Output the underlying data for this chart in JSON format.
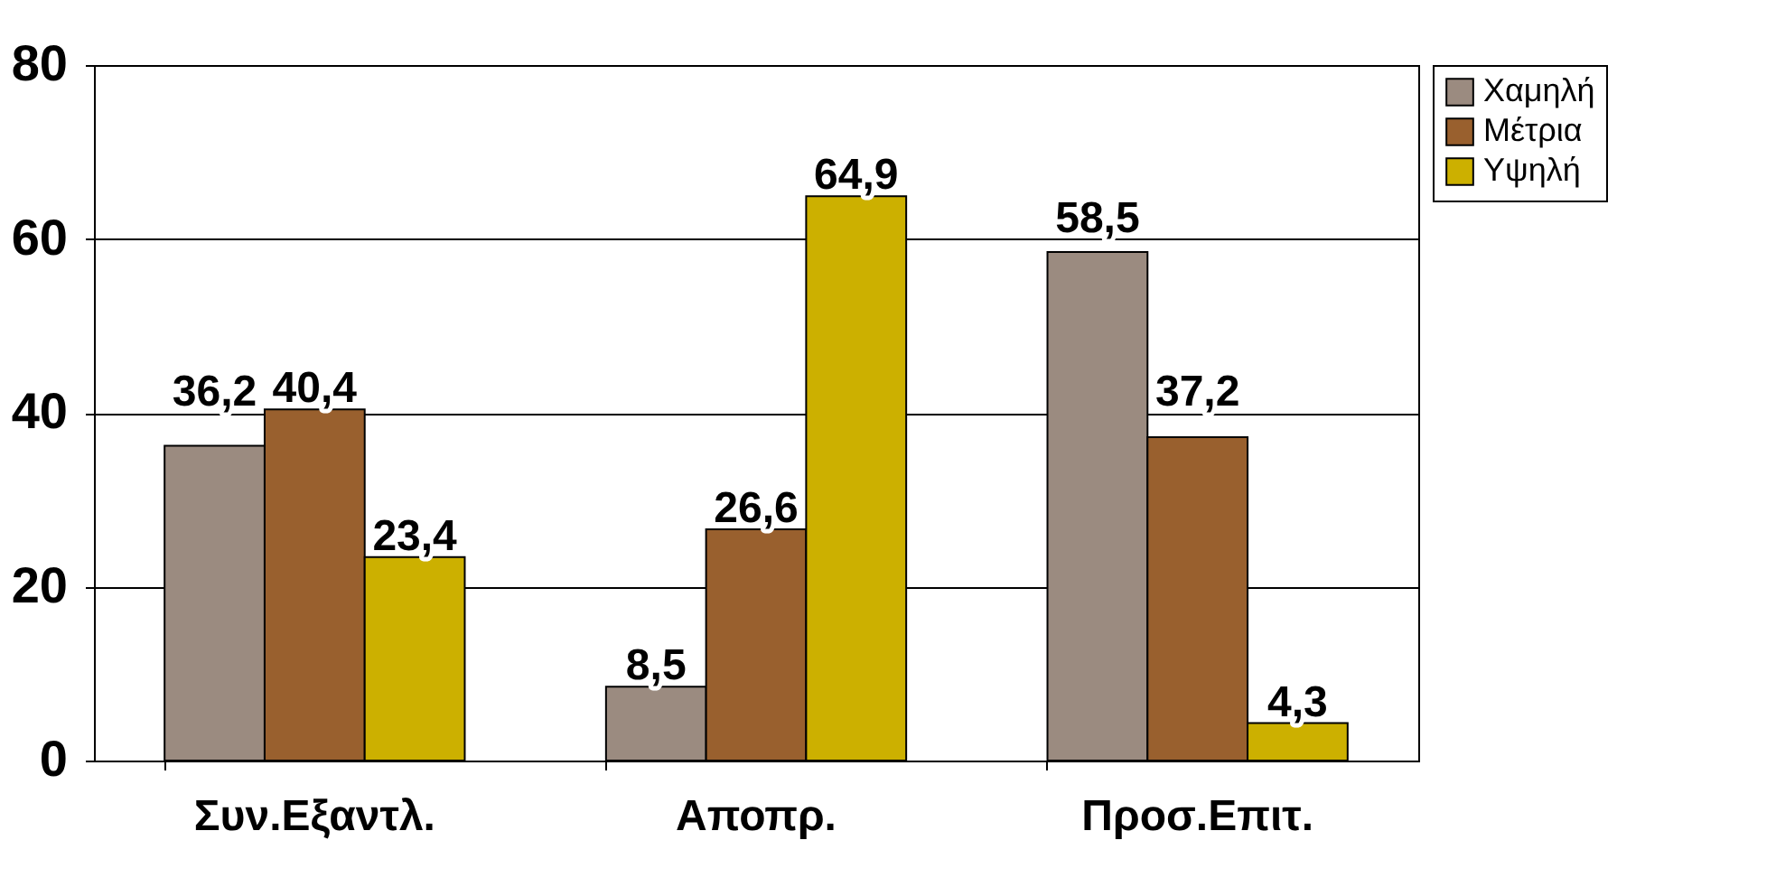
{
  "chart_data": {
    "type": "bar",
    "categories": [
      "Συν.Εξαντλ.",
      "Αποπρ.",
      "Προσ.Επιτ."
    ],
    "series": [
      {
        "name": "Χαμηλή",
        "color": "#9b8b80",
        "values": [
          36.2,
          8.5,
          58.5
        ],
        "value_labels": [
          "36,2",
          "8,5",
          "58,5"
        ]
      },
      {
        "name": "Μέτρια",
        "color": "#99602e",
        "values": [
          40.4,
          26.6,
          37.2
        ],
        "value_labels": [
          "40,4",
          "26,6",
          "37,2"
        ]
      },
      {
        "name": "Υψηλή",
        "color": "#ccb000",
        "values": [
          23.4,
          64.9,
          4.3
        ],
        "value_labels": [
          "23,4",
          "64,9",
          "4,3"
        ]
      }
    ],
    "ylim": [
      0,
      80
    ],
    "yticks": [
      0,
      20,
      40,
      60,
      80
    ],
    "grid": "y",
    "legend": "right"
  }
}
